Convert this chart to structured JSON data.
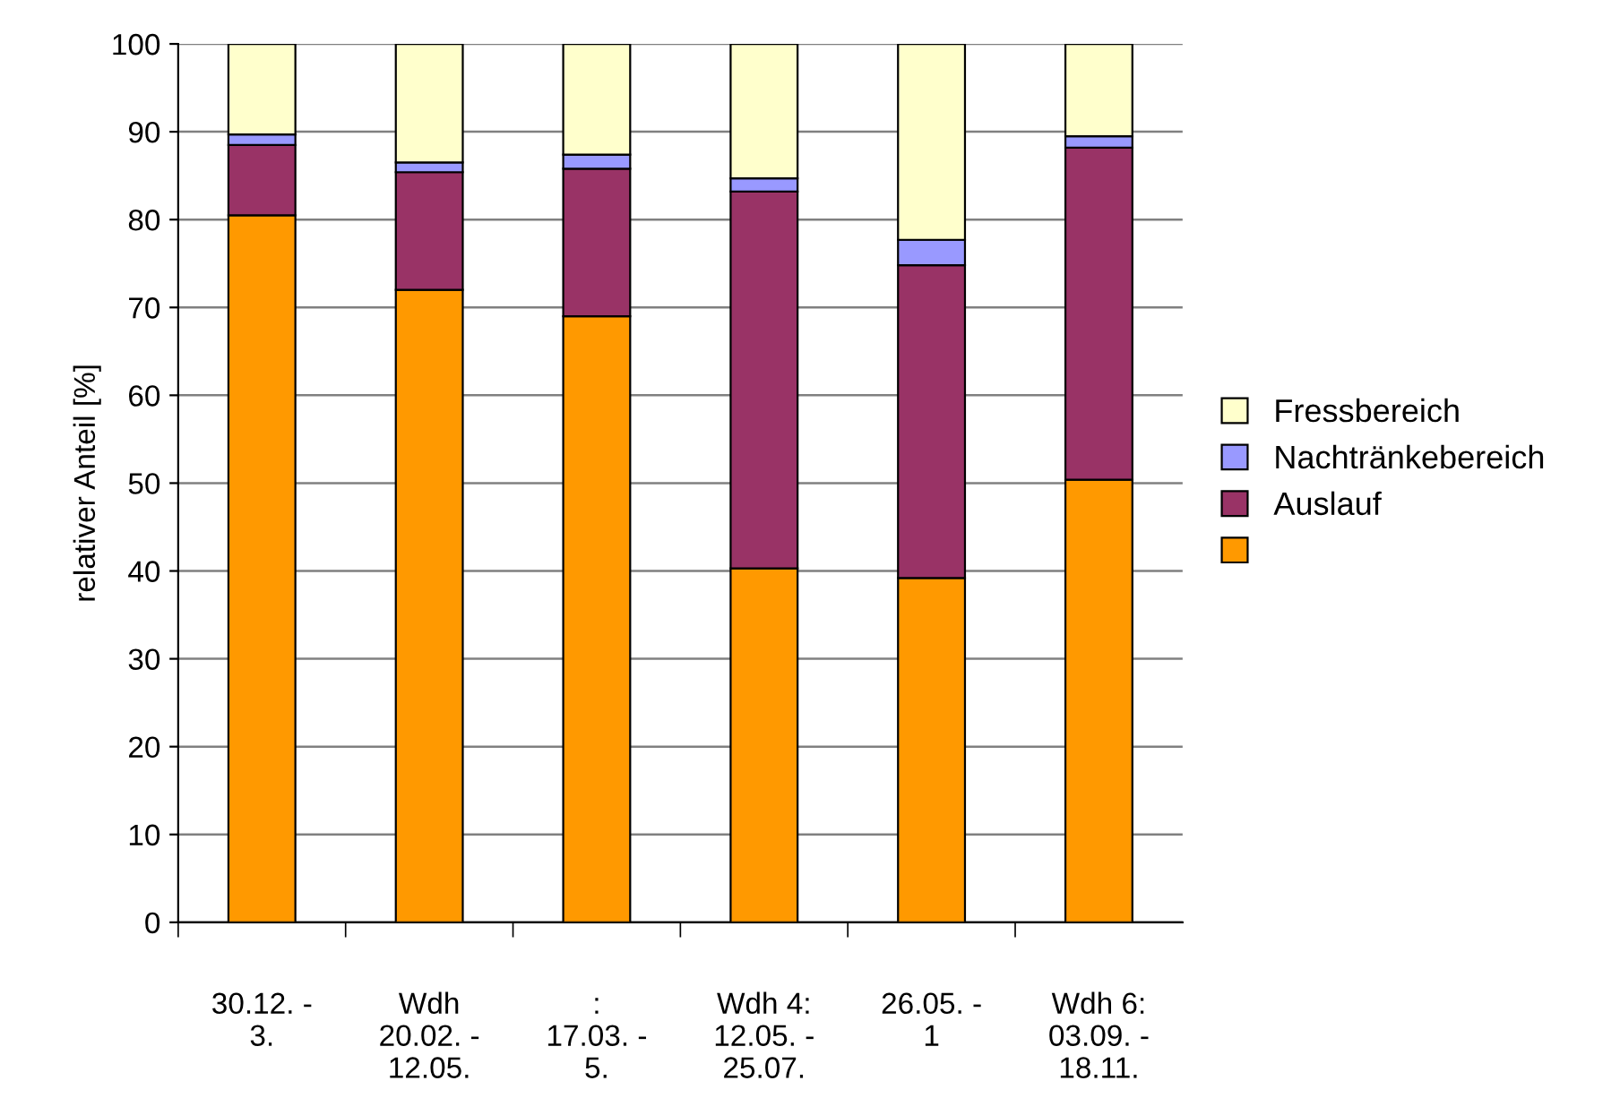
{
  "chart_data": {
    "type": "bar",
    "stacked": true,
    "ylabel": "relativer Anteil [%]",
    "categories": [
      "30.12. -\n3.",
      "Wdh\n20.02. -\n12.05.",
      ":\n17.03. -\n5.",
      "Wdh 4:\n12.05. -\n25.07.",
      "26.05. -\n1",
      "Wdh 6:\n03.09. -\n18.11."
    ],
    "series": [
      {
        "color": "#ff9900",
        "values": [
          80.5,
          72,
          69,
          40.3,
          39.2,
          50.4
        ]
      },
      {
        "name": "Auslauf",
        "color": "#993366",
        "values": [
          8,
          13.4,
          16.8,
          42.9,
          35.6,
          37.8
        ]
      },
      {
        "name": "Nachtränkebereich",
        "color": "#9999ff",
        "values": [
          1.2,
          1.1,
          1.6,
          1.5,
          2.9,
          1.3
        ]
      },
      {
        "name": "Fressbereich",
        "color": "#ffffcc",
        "values": [
          10.3,
          13.5,
          12.6,
          15.3,
          22.3,
          10.5
        ]
      }
    ],
    "ylim": [
      0,
      100
    ],
    "yticks": [
      0,
      10,
      20,
      30,
      40,
      50,
      60,
      70,
      80,
      90,
      100
    ],
    "grid": "y",
    "legend": "right"
  }
}
